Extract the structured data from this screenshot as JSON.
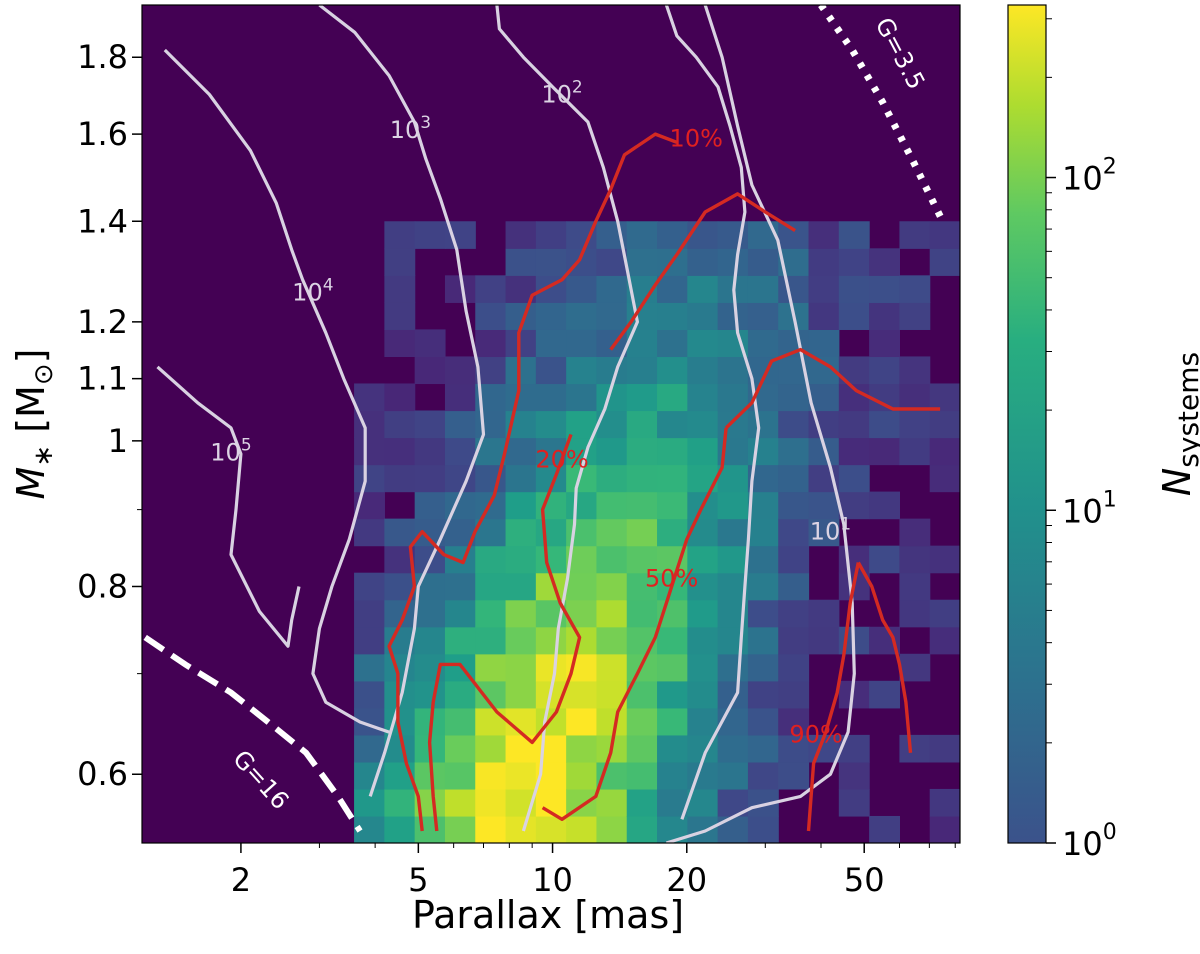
{
  "chart_data": {
    "type": "heatmap",
    "xlabel": "Parallax [mas]",
    "ylabel_symbol": "M",
    "ylabel_sub": "∗",
    "ylabel_unit": "[M",
    "ylabel_unit_sub": "⊙",
    "ylabel_unit_close": "]",
    "x_scale": "log",
    "y_scale": "log",
    "xlim": [
      1.2,
      82
    ],
    "ylim": [
      0.54,
      1.95
    ],
    "xticks": [
      {
        "value": 2,
        "label": "2"
      },
      {
        "value": 5,
        "label": "5"
      },
      {
        "value": 10,
        "label": "10"
      },
      {
        "value": 20,
        "label": "20"
      },
      {
        "value": 50,
        "label": "50"
      }
    ],
    "yticks": [
      {
        "value": 0.6,
        "label": "0.6"
      },
      {
        "value": 0.8,
        "label": "0.8"
      },
      {
        "value": 1.0,
        "label": "1"
      },
      {
        "value": 1.1,
        "label": "1.1"
      },
      {
        "value": 1.2,
        "label": "1.2"
      },
      {
        "value": 1.4,
        "label": "1.4"
      },
      {
        "value": 1.6,
        "label": "1.6"
      },
      {
        "value": 1.8,
        "label": "1.8"
      }
    ],
    "colorbar": {
      "label_main": "N",
      "label_sub": "systems",
      "scale": "log",
      "range": [
        1,
        330
      ],
      "ticks": [
        {
          "value": 1,
          "base": "10",
          "exp": "0"
        },
        {
          "value": 10,
          "base": "10",
          "exp": "1"
        },
        {
          "value": 100,
          "base": "10",
          "exp": "2"
        }
      ]
    },
    "grid": {
      "x_bins": 27,
      "y_bins": 31,
      "x_range": [
        1.2,
        82
      ],
      "y_range": [
        0.54,
        1.95
      ]
    },
    "contours_white": [
      {
        "label_base": "10",
        "label_exp": "5",
        "label_at": [
          1.9,
          0.97
        ],
        "points": [
          [
            1.3,
            1.12
          ],
          [
            1.6,
            1.06
          ],
          [
            1.9,
            1.02
          ],
          [
            2.0,
            0.98
          ],
          [
            1.95,
            0.9
          ],
          [
            1.9,
            0.84
          ],
          [
            2.2,
            0.77
          ],
          [
            2.55,
            0.73
          ],
          [
            2.6,
            0.76
          ],
          [
            2.7,
            0.8
          ]
        ]
      },
      {
        "label_base": "10",
        "label_exp": "4",
        "label_at": [
          2.9,
          1.24
        ],
        "points": [
          [
            1.35,
            1.82
          ],
          [
            1.7,
            1.7
          ],
          [
            2.1,
            1.56
          ],
          [
            2.4,
            1.44
          ],
          [
            2.6,
            1.34
          ],
          [
            2.75,
            1.28
          ],
          [
            3.1,
            1.18
          ],
          [
            3.4,
            1.1
          ],
          [
            3.8,
            1.02
          ],
          [
            3.8,
            0.94
          ],
          [
            3.5,
            0.86
          ],
          [
            3.2,
            0.8
          ],
          [
            3.0,
            0.75
          ],
          [
            2.9,
            0.7
          ],
          [
            3.1,
            0.67
          ],
          [
            3.7,
            0.65
          ],
          [
            4.3,
            0.64
          ]
        ]
      },
      {
        "label_base": "10",
        "label_exp": "3",
        "label_at": [
          4.8,
          1.59
        ],
        "points": [
          [
            3.0,
            1.95
          ],
          [
            3.6,
            1.87
          ],
          [
            4.3,
            1.75
          ],
          [
            4.9,
            1.63
          ],
          [
            5.2,
            1.54
          ],
          [
            5.6,
            1.45
          ],
          [
            6.1,
            1.34
          ],
          [
            6.4,
            1.22
          ],
          [
            6.8,
            1.12
          ],
          [
            7.0,
            1.01
          ],
          [
            6.4,
            0.94
          ],
          [
            5.6,
            0.86
          ],
          [
            5.0,
            0.8
          ],
          [
            4.9,
            0.75
          ],
          [
            4.6,
            0.68
          ],
          [
            4.2,
            0.62
          ],
          [
            3.9,
            0.58
          ]
        ]
      },
      {
        "label_base": "10",
        "label_exp": "2",
        "label_at": [
          10.5,
          1.68
        ],
        "points": [
          [
            7.5,
            1.95
          ],
          [
            7.6,
            1.88
          ],
          [
            8.6,
            1.8
          ],
          [
            10.0,
            1.72
          ],
          [
            12.0,
            1.63
          ],
          [
            13.0,
            1.52
          ],
          [
            14.0,
            1.4
          ],
          [
            14.7,
            1.3
          ],
          [
            15.5,
            1.2
          ],
          [
            14.0,
            1.12
          ],
          [
            13.1,
            1.05
          ],
          [
            12.0,
            0.99
          ],
          [
            11.3,
            0.93
          ],
          [
            11.2,
            0.88
          ],
          [
            10.8,
            0.81
          ],
          [
            10.3,
            0.75
          ],
          [
            10.1,
            0.7
          ],
          [
            9.6,
            0.65
          ],
          [
            9.4,
            0.6
          ],
          [
            8.6,
            0.55
          ]
        ]
      },
      {
        "label_base": "10",
        "label_exp": "1",
        "label_at": [
          42.0,
          0.86
        ],
        "points": [
          [
            18.0,
            1.95
          ],
          [
            19.0,
            1.86
          ],
          [
            21.0,
            1.8
          ],
          [
            23.5,
            1.72
          ],
          [
            25.0,
            1.62
          ],
          [
            26.5,
            1.52
          ],
          [
            27.0,
            1.42
          ],
          [
            26.0,
            1.33
          ],
          [
            25.5,
            1.26
          ],
          [
            26.0,
            1.18
          ],
          [
            28.0,
            1.1
          ],
          [
            29.0,
            1.02
          ],
          [
            28.0,
            0.94
          ],
          [
            27.5,
            0.86
          ],
          [
            27.0,
            0.8
          ],
          [
            26.5,
            0.74
          ],
          [
            26.0,
            0.68
          ],
          [
            22.0,
            0.62
          ],
          [
            19.5,
            0.56
          ]
        ]
      },
      {
        "label_base": "",
        "label_exp": "",
        "label_at": [
          0,
          0
        ],
        "points": [
          [
            22.0,
            1.95
          ],
          [
            24.0,
            1.8
          ],
          [
            26.0,
            1.62
          ],
          [
            28.0,
            1.48
          ],
          [
            32.0,
            1.36
          ],
          [
            35.0,
            1.2
          ],
          [
            38.0,
            1.06
          ],
          [
            42.0,
            0.96
          ],
          [
            45.0,
            0.88
          ],
          [
            47.0,
            0.78
          ],
          [
            47.5,
            0.7
          ],
          [
            46.0,
            0.64
          ],
          [
            42.0,
            0.6
          ],
          [
            36.0,
            0.58
          ],
          [
            28.0,
            0.57
          ],
          [
            22.0,
            0.55
          ],
          [
            18.0,
            0.54
          ]
        ]
      }
    ],
    "contours_red": [
      {
        "label": "10%",
        "label_at": [
          21.0,
          1.57
        ],
        "points": [
          [
            19.0,
            1.58
          ],
          [
            17.0,
            1.6
          ],
          [
            14.5,
            1.55
          ],
          [
            13.5,
            1.47
          ],
          [
            12.5,
            1.4
          ],
          [
            11.5,
            1.32
          ],
          [
            10.5,
            1.28
          ],
          [
            9.0,
            1.25
          ],
          [
            8.4,
            1.18
          ],
          [
            8.4,
            1.08
          ],
          [
            7.8,
            0.98
          ],
          [
            7.4,
            0.92
          ],
          [
            6.7,
            0.87
          ],
          [
            6.3,
            0.83
          ],
          [
            5.7,
            0.84
          ],
          [
            5.1,
            0.87
          ],
          [
            4.8,
            0.85
          ],
          [
            4.9,
            0.8
          ],
          [
            4.6,
            0.76
          ],
          [
            4.3,
            0.73
          ],
          [
            4.5,
            0.7
          ],
          [
            4.5,
            0.65
          ],
          [
            4.7,
            0.61
          ],
          [
            5.0,
            0.58
          ],
          [
            5.1,
            0.55
          ]
        ]
      },
      {
        "label": "20%",
        "label_at": [
          10.5,
          0.96
        ],
        "points": [
          [
            13.5,
            1.15
          ],
          [
            15.0,
            1.2
          ],
          [
            17.0,
            1.27
          ],
          [
            19.0,
            1.33
          ],
          [
            22.0,
            1.42
          ],
          [
            26.0,
            1.46
          ],
          [
            30.0,
            1.42
          ],
          [
            35.0,
            1.38
          ]
        ]
      },
      {
        "label": "",
        "label_at": [
          0,
          0
        ],
        "points": [
          [
            11.0,
            1.01
          ],
          [
            10.2,
            0.95
          ],
          [
            9.5,
            0.9
          ],
          [
            9.7,
            0.83
          ],
          [
            10.4,
            0.78
          ],
          [
            11.5,
            0.74
          ],
          [
            11.0,
            0.7
          ],
          [
            10.2,
            0.66
          ],
          [
            9.0,
            0.63
          ],
          [
            7.5,
            0.66
          ],
          [
            6.2,
            0.71
          ],
          [
            5.6,
            0.71
          ],
          [
            5.4,
            0.67
          ],
          [
            5.3,
            0.63
          ],
          [
            5.4,
            0.58
          ],
          [
            5.5,
            0.55
          ]
        ]
      },
      {
        "label": "50%",
        "label_at": [
          18.5,
          0.8
        ],
        "points": [
          [
            24.5,
            1.02
          ],
          [
            24.0,
            0.96
          ],
          [
            21.5,
            0.9
          ],
          [
            20.0,
            0.86
          ],
          [
            19.0,
            0.82
          ],
          [
            18.0,
            0.78
          ],
          [
            17.0,
            0.74
          ],
          [
            15.5,
            0.7
          ],
          [
            14.0,
            0.66
          ],
          [
            13.5,
            0.62
          ],
          [
            12.5,
            0.58
          ],
          [
            10.5,
            0.56
          ],
          [
            9.5,
            0.57
          ]
        ]
      },
      {
        "label": "",
        "label_at": [
          0,
          0
        ],
        "points": [
          [
            24.5,
            1.02
          ],
          [
            28.0,
            1.06
          ],
          [
            31.0,
            1.13
          ],
          [
            36.0,
            1.15
          ],
          [
            42.0,
            1.12
          ],
          [
            48.0,
            1.08
          ],
          [
            58.0,
            1.05
          ],
          [
            74.0,
            1.05
          ]
        ]
      },
      {
        "label": "90%",
        "label_at": [
          39.0,
          0.63
        ],
        "points": [
          [
            48.5,
            0.83
          ],
          [
            46.5,
            0.78
          ],
          [
            45.0,
            0.72
          ],
          [
            43.5,
            0.68
          ],
          [
            41.0,
            0.64
          ],
          [
            38.5,
            0.61
          ],
          [
            38.0,
            0.58
          ],
          [
            37.5,
            0.55
          ]
        ]
      },
      {
        "label": "",
        "label_at": [
          0,
          0
        ],
        "points": [
          [
            48.5,
            0.83
          ],
          [
            52.0,
            0.8
          ],
          [
            55.0,
            0.76
          ],
          [
            58.0,
            0.74
          ],
          [
            60.0,
            0.71
          ],
          [
            62.0,
            0.67
          ],
          [
            63.5,
            0.62
          ]
        ]
      }
    ],
    "annotations": [
      {
        "text": "G=3.5",
        "kind": "dotted",
        "points": [
          [
            40.0,
            1.95
          ],
          [
            47.0,
            1.82
          ],
          [
            55.0,
            1.68
          ],
          [
            64.0,
            1.54
          ],
          [
            75.0,
            1.4
          ]
        ],
        "label_at": [
          58.0,
          1.8
        ]
      },
      {
        "text": "G=16",
        "kind": "dashed",
        "points": [
          [
            1.22,
            0.74
          ],
          [
            1.5,
            0.71
          ],
          [
            1.9,
            0.68
          ],
          [
            2.3,
            0.65
          ],
          [
            2.8,
            0.62
          ],
          [
            3.3,
            0.58
          ],
          [
            3.7,
            0.55
          ]
        ],
        "label_at": [
          2.15,
          0.59
        ]
      }
    ]
  }
}
